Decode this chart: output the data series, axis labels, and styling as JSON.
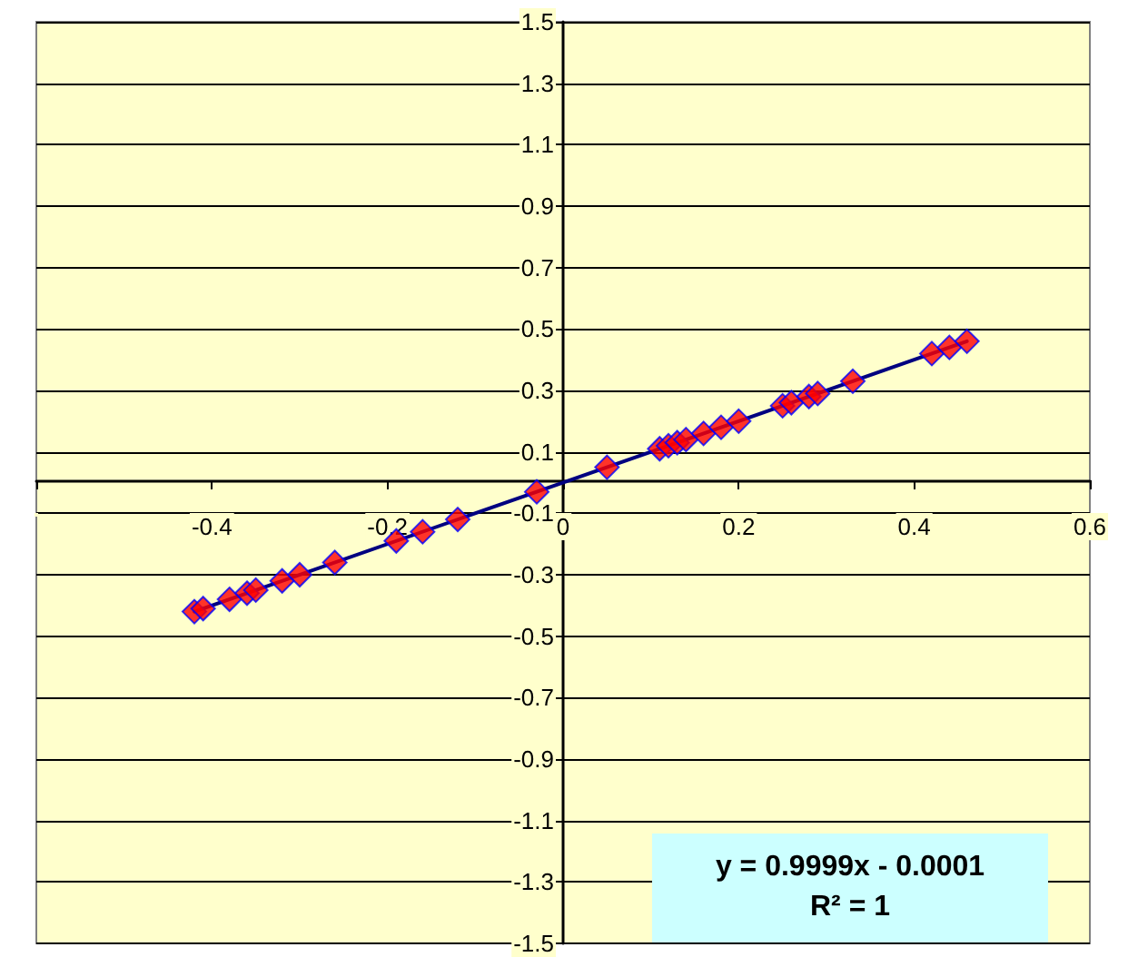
{
  "chart_data": {
    "type": "scatter",
    "grid": "y",
    "xlim": [
      -0.6,
      0.6
    ],
    "xticks": [
      {
        "value": -0.6,
        "label": null
      },
      -0.4,
      -0.2,
      0,
      0.2,
      0.4,
      0.6
    ],
    "ylim": [
      -1.5,
      1.5
    ],
    "yticks": [
      -1.5,
      -1.3,
      -1.1,
      -0.9,
      -0.7,
      -0.5,
      -0.3,
      -0.1,
      0.1,
      0.3,
      0.5,
      0.7,
      0.9,
      1.1,
      1.3,
      1.5
    ],
    "annotations": [
      "y = 0.9999x - 0.0001",
      "R² = 1"
    ],
    "series": [
      {
        "type": "line",
        "marker": "none",
        "color": "#000080",
        "line_style": "solid",
        "x": [
          -0.42,
          0.46
        ],
        "values": [
          -0.42,
          0.46
        ]
      },
      {
        "type": "scatter",
        "marker": "diamond",
        "color": "#ff0000",
        "x": [
          -0.42,
          -0.41,
          -0.38,
          -0.36,
          -0.35,
          -0.32,
          -0.3,
          -0.26,
          -0.19,
          -0.16,
          -0.12,
          -0.03,
          0.05,
          0.11,
          0.12,
          0.13,
          0.14,
          0.16,
          0.18,
          0.2,
          0.25,
          0.26,
          0.28,
          0.29,
          0.33,
          0.42,
          0.44,
          0.46
        ],
        "values": [
          -0.42,
          -0.41,
          -0.38,
          -0.36,
          -0.35,
          -0.32,
          -0.3,
          -0.26,
          -0.19,
          -0.16,
          -0.12,
          -0.03,
          0.05,
          0.11,
          0.12,
          0.13,
          0.14,
          0.16,
          0.18,
          0.2,
          0.25,
          0.26,
          0.28,
          0.29,
          0.33,
          0.42,
          0.44,
          0.46
        ]
      }
    ]
  }
}
